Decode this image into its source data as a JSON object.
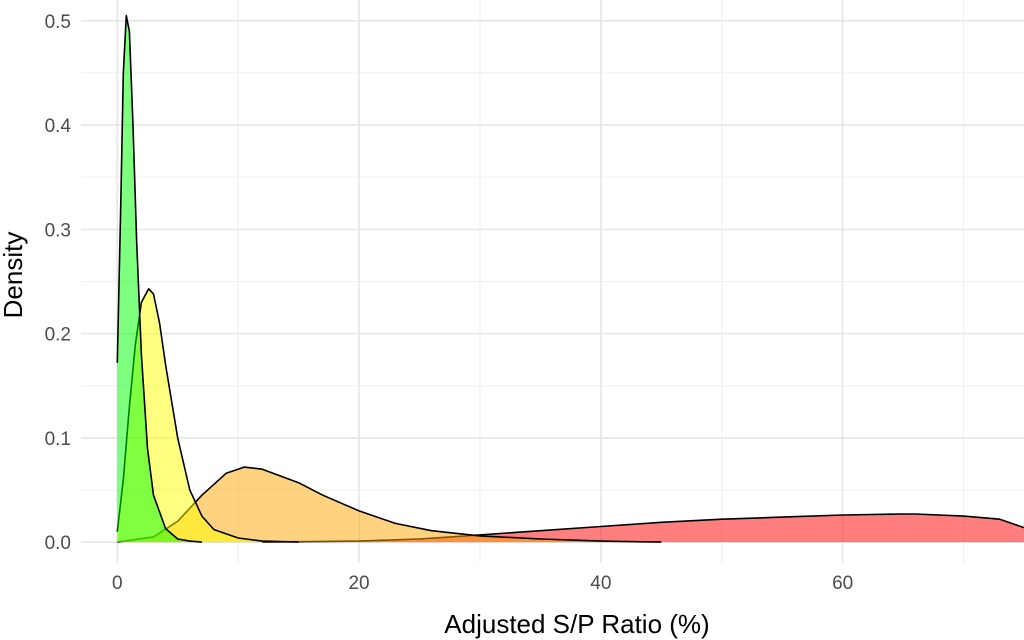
{
  "chart_data": {
    "type": "area",
    "title": "",
    "xlabel": "Adjusted S/P Ratio (%)",
    "ylabel": "Density",
    "xlim": [
      -3,
      75
    ],
    "ylim": [
      -0.02,
      0.52
    ],
    "x_ticks": [
      0,
      20,
      40,
      60
    ],
    "x_tick_labels": [
      "0",
      "20",
      "40",
      "60"
    ],
    "y_ticks": [
      0.0,
      0.1,
      0.2,
      0.3,
      0.4,
      0.5
    ],
    "y_tick_labels": [
      "0.0",
      "0.1",
      "0.2",
      "0.3",
      "0.4",
      "0.5"
    ],
    "grid": true,
    "legend": "none",
    "series": [
      {
        "color": "#ff0000",
        "points": [
          [
            12,
            0
          ],
          [
            20,
            0.001
          ],
          [
            25,
            0.003
          ],
          [
            30,
            0.007
          ],
          [
            35,
            0.011
          ],
          [
            40,
            0.015
          ],
          [
            45,
            0.019
          ],
          [
            50,
            0.022
          ],
          [
            55,
            0.024
          ],
          [
            60,
            0.026
          ],
          [
            65,
            0.027
          ],
          [
            66,
            0.027
          ],
          [
            70,
            0.025
          ],
          [
            73,
            0.022
          ],
          [
            75,
            0.014
          ]
        ]
      },
      {
        "color": "#ffa500",
        "points": [
          [
            0,
            0
          ],
          [
            3,
            0.005
          ],
          [
            5,
            0.02
          ],
          [
            7,
            0.045
          ],
          [
            9,
            0.066
          ],
          [
            10.5,
            0.072
          ],
          [
            12,
            0.07
          ],
          [
            15,
            0.057
          ],
          [
            17,
            0.045
          ],
          [
            20,
            0.03
          ],
          [
            23,
            0.018
          ],
          [
            26,
            0.011
          ],
          [
            30,
            0.006
          ],
          [
            35,
            0.003
          ],
          [
            40,
            0.001
          ],
          [
            45,
            0
          ]
        ]
      },
      {
        "color": "#ffff00",
        "points": [
          [
            0,
            0.01
          ],
          [
            0.5,
            0.06
          ],
          [
            1.0,
            0.13
          ],
          [
            1.5,
            0.19
          ],
          [
            2.0,
            0.23
          ],
          [
            2.6,
            0.243
          ],
          [
            3.0,
            0.238
          ],
          [
            3.5,
            0.21
          ],
          [
            4.0,
            0.17
          ],
          [
            5.0,
            0.1
          ],
          [
            6.0,
            0.05
          ],
          [
            7.0,
            0.025
          ],
          [
            8.0,
            0.012
          ],
          [
            10,
            0.004
          ],
          [
            12,
            0.001
          ],
          [
            15,
            0
          ]
        ]
      },
      {
        "color": "#00ff00",
        "points": [
          [
            0,
            0.172
          ],
          [
            0.3,
            0.33
          ],
          [
            0.5,
            0.45
          ],
          [
            0.75,
            0.505
          ],
          [
            1.0,
            0.49
          ],
          [
            1.3,
            0.4
          ],
          [
            1.6,
            0.29
          ],
          [
            2.0,
            0.18
          ],
          [
            2.5,
            0.09
          ],
          [
            3.0,
            0.045
          ],
          [
            4.0,
            0.013
          ],
          [
            5.0,
            0.003
          ],
          [
            6.0,
            0.001
          ],
          [
            7.0,
            0
          ]
        ]
      }
    ]
  }
}
